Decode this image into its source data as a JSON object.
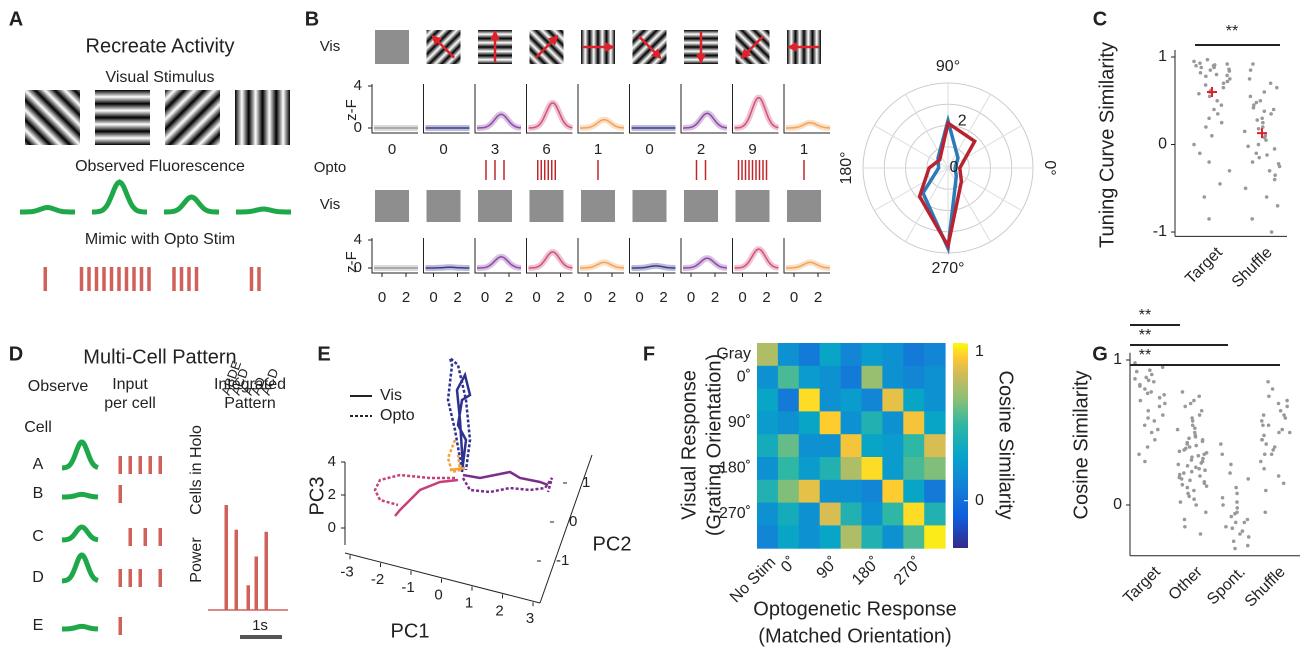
{
  "panel_a": {
    "letter": "A",
    "title": "Recreate Activity",
    "stimulus": "Visual Stimulus",
    "fluorescence": "Observed Fluorescence",
    "opto": "Mimic with Opto Stim",
    "fluorescence_peaks": [
      0.15,
      1,
      0.5,
      0.1
    ],
    "spike_counts": [
      1,
      10,
      4,
      2
    ]
  },
  "panel_b": {
    "letter": "B",
    "vis": "Vis",
    "opto": "Opto",
    "ylabel": "z-F",
    "yticks": [
      0,
      4
    ],
    "xticks": [
      0,
      2
    ],
    "spike_counts": [
      0,
      0,
      3,
      6,
      1,
      0,
      2,
      9,
      1
    ],
    "vis_peaks": [
      0,
      0,
      1.3,
      2.4,
      0.8,
      0,
      1.4,
      2.9,
      0.5
    ],
    "opto_peaks": [
      0,
      0.1,
      1.6,
      2.3,
      0.8,
      0.3,
      1.4,
      2.7,
      0.8
    ],
    "polar": {
      "angle_labels": [
        "0°",
        "90°",
        "180°",
        "270°"
      ],
      "rticks": [
        0,
        2
      ],
      "rlim": [
        0,
        3.6
      ],
      "angles": [
        0,
        45,
        90,
        135,
        180,
        225,
        270,
        315
      ],
      "series": [
        {
          "color": "#2b7bba",
          "values": [
            0.3,
            0.6,
            2,
            0.6,
            0.4,
            1.5,
            3.4,
            0.5
          ]
        },
        {
          "color": "#b8232f",
          "values": [
            0.5,
            1.6,
            1.9,
            0.5,
            0.8,
            1.7,
            3.3,
            0.8
          ]
        }
      ]
    }
  },
  "panel_c": {
    "letter": "C",
    "ylabel": "Tuning Curve Similarity",
    "yticks": [
      -1,
      0,
      1
    ],
    "ylim": [
      -1.05,
      1.08
    ],
    "categories": [
      "Target",
      "Shuffle"
    ],
    "significance": "**",
    "means": [
      0.6,
      0.13
    ],
    "groups": [
      [
        0.95,
        0.92,
        0.9,
        0.88,
        0.97,
        0.85,
        0.8,
        0.93,
        0.78,
        0.9,
        0.86,
        0.7,
        0.82,
        0.75,
        0.65,
        0.6,
        0.72,
        0.55,
        0.5,
        0.68,
        0.45,
        0.4,
        0.35,
        0.3,
        0.58,
        0.2,
        0.1,
        0.0,
        -0.1,
        -0.2,
        -0.3,
        -0.45,
        -0.6,
        -0.85,
        0.88,
        0.91,
        0.84,
        0.79,
        0.62,
        0.25
      ],
      [
        0.85,
        0.7,
        0.6,
        0.5,
        0.45,
        0.4,
        0.35,
        0.3,
        0.25,
        0.2,
        0.15,
        0.1,
        0.05,
        0.0,
        -0.05,
        -0.1,
        -0.15,
        -0.2,
        -0.25,
        -0.3,
        -0.35,
        -0.4,
        -0.5,
        -0.6,
        -0.7,
        -0.85,
        -1.0,
        0.75,
        0.65,
        0.55,
        0.48,
        0.38,
        0.28,
        0.18,
        0.08,
        -0.02,
        -0.12,
        -0.22,
        0.92,
        0.42
      ]
    ]
  },
  "panel_d": {
    "letter": "D",
    "title": "Multi-Cell Pattern",
    "observe": "Observe",
    "input": [
      "Input",
      "per cell"
    ],
    "integrated": [
      "Integrated",
      "Pattern"
    ],
    "cell": "Cell",
    "cells": [
      "A",
      "B",
      "C",
      "D",
      "E"
    ],
    "observed_peaks": [
      1,
      0.1,
      0.5,
      1,
      0.1
    ],
    "input_counts": [
      5,
      1,
      3,
      4,
      1
    ],
    "holo_label": "Cells in Holo",
    "holo_sets": [
      "ABDE",
      "ACD",
      "A",
      "AD",
      "ACD"
    ],
    "power_label": "Power",
    "power": [
      5.1,
      3.9,
      1.2,
      2.6,
      3.8
    ],
    "scale": "1s"
  },
  "panel_e": {
    "letter": "E",
    "legend": [
      "Vis",
      "Opto"
    ],
    "axes": [
      "PC1",
      "PC2",
      "PC3"
    ],
    "pc1_ticks": [
      -3,
      -2,
      -1,
      0,
      1,
      2,
      3
    ],
    "pc2_ticks": [
      1,
      0,
      -1
    ],
    "pc3_ticks": [
      4,
      2,
      0
    ]
  },
  "panel_f": {
    "letter": "F",
    "row_labels": [
      "Gray",
      "0˚",
      null,
      "90˚",
      null,
      "180˚",
      null,
      "270˚",
      null
    ],
    "col_labels": [
      "No Stim",
      "0˚",
      null,
      "90˚",
      null,
      "180˚",
      null,
      "270˚",
      null
    ],
    "ylabel": [
      "Visual Response",
      "(Grating Orientation)"
    ],
    "xlabel": [
      "Optogenetic Response",
      "(Matched Orientation)"
    ],
    "colorbar_label": "Cosine Similarity",
    "cticks": [
      0,
      1
    ],
    "clim": [
      -0.3,
      1
    ],
    "matrix": [
      [
        0.6,
        0.1,
        0.0,
        0.2,
        0.05,
        0.15,
        0.1,
        0.0,
        0.05
      ],
      [
        0.1,
        0.4,
        0.15,
        0.1,
        0.0,
        0.55,
        0.1,
        0.05,
        0.1
      ],
      [
        0.2,
        0.0,
        0.9,
        0.1,
        0.15,
        0.05,
        0.75,
        0.2,
        0.1
      ],
      [
        0.15,
        0.1,
        0.2,
        0.85,
        0.1,
        0.3,
        0.1,
        0.8,
        0.2
      ],
      [
        0.25,
        0.45,
        0.1,
        0.1,
        0.8,
        0.2,
        0.15,
        0.35,
        0.7
      ],
      [
        0.1,
        0.35,
        0.15,
        0.3,
        0.6,
        0.9,
        0.15,
        0.4,
        0.5
      ],
      [
        0.3,
        0.5,
        0.75,
        0.1,
        0.1,
        0.05,
        0.85,
        0.2,
        0.0
      ],
      [
        0.1,
        0.25,
        0.1,
        0.7,
        0.3,
        0.1,
        0.35,
        0.9,
        0.3
      ],
      [
        0.05,
        0.2,
        0.1,
        0.2,
        0.6,
        0.3,
        0.1,
        0.4,
        0.95
      ]
    ]
  },
  "panel_g": {
    "letter": "G",
    "ylabel": "Cosine Similarity",
    "yticks": [
      0,
      1
    ],
    "ylim": [
      -0.35,
      1.05
    ],
    "categories": [
      "Target",
      "Other",
      "Spont.",
      "Shuffle"
    ],
    "significance": [
      "**",
      "**",
      "**"
    ],
    "groups": [
      [
        0.98,
        0.95,
        0.92,
        0.9,
        0.88,
        0.86,
        0.85,
        0.83,
        0.8,
        0.78,
        0.76,
        0.74,
        0.72,
        0.7,
        0.68,
        0.65,
        0.62,
        0.6,
        0.58,
        0.55,
        0.52,
        0.5,
        0.45,
        0.4,
        0.35,
        0.3,
        0.93,
        0.87,
        0.82,
        0.77
      ],
      [
        0.78,
        0.75,
        0.72,
        0.7,
        0.68,
        0.65,
        0.62,
        0.6,
        0.58,
        0.55,
        0.52,
        0.5,
        0.48,
        0.46,
        0.44,
        0.42,
        0.4,
        0.38,
        0.36,
        0.34,
        0.32,
        0.3,
        0.28,
        0.26,
        0.24,
        0.22,
        0.2,
        0.18,
        0.16,
        0.14,
        0.12,
        0.1,
        0.08,
        0.06,
        0.04,
        0.02,
        0.0,
        -0.05,
        -0.1,
        -0.15,
        -0.2,
        0.45,
        0.41,
        0.37,
        0.33,
        0.29,
        0.25,
        0.21,
        0.17,
        0.13,
        0.35,
        0.31,
        0.27,
        0.23,
        0.19,
        0.15,
        0.39,
        0.43,
        0.47,
        0.53
      ],
      [
        0.42,
        0.35,
        0.28,
        0.22,
        0.18,
        0.12,
        0.08,
        0.02,
        -0.02,
        -0.05,
        -0.08,
        -0.1,
        -0.12,
        -0.15,
        -0.18,
        -0.2,
        -0.22,
        -0.25,
        -0.28,
        -0.3,
        -0.12,
        -0.06,
        0.0,
        0.05,
        -0.16
      ],
      [
        0.85,
        0.8,
        0.75,
        0.72,
        0.7,
        0.68,
        0.65,
        0.62,
        0.6,
        0.58,
        0.55,
        0.52,
        0.5,
        0.48,
        0.45,
        0.42,
        0.4,
        0.38,
        0.35,
        0.3,
        0.25,
        0.2,
        0.15,
        0.1,
        -0.05,
        0.55,
        0.5,
        0.45,
        0.62,
        0.35
      ]
    ]
  }
}
